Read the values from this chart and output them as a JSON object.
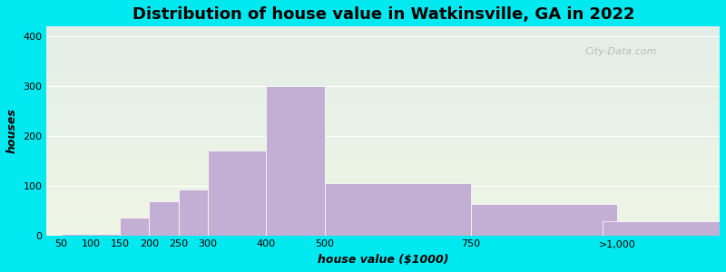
{
  "title": "Distribution of house value in Watkinsville, GA in 2022",
  "xlabel": "house value ($1000)",
  "ylabel": "houses",
  "bar_values": [
    3,
    3,
    35,
    68,
    93,
    170,
    300,
    105,
    63,
    28
  ],
  "bar_positions": [
    75,
    125,
    175,
    225,
    275,
    350,
    450,
    625,
    875,
    1075
  ],
  "bar_widths": [
    50,
    50,
    50,
    50,
    50,
    100,
    100,
    250,
    250,
    200
  ],
  "bar_color": "#c4afd4",
  "ylim": [
    0,
    420
  ],
  "xlim": [
    25,
    1175
  ],
  "yticks": [
    0,
    100,
    200,
    300,
    400
  ],
  "xtick_labels": [
    "50",
    "100",
    "150",
    "200",
    "250",
    "300",
    "400",
    "500",
    "750",
    ">1,000"
  ],
  "xtick_positions": [
    50,
    100,
    150,
    200,
    250,
    300,
    400,
    500,
    750,
    1000
  ],
  "background_outer": "#00e8f0",
  "background_grad_top": "#eef5e4",
  "background_grad_bottom": "#e4eee8",
  "grid_color": "#ffffff",
  "title_fontsize": 13,
  "label_fontsize": 9,
  "tick_fontsize": 8,
  "watermark_text": "City-Data.com"
}
